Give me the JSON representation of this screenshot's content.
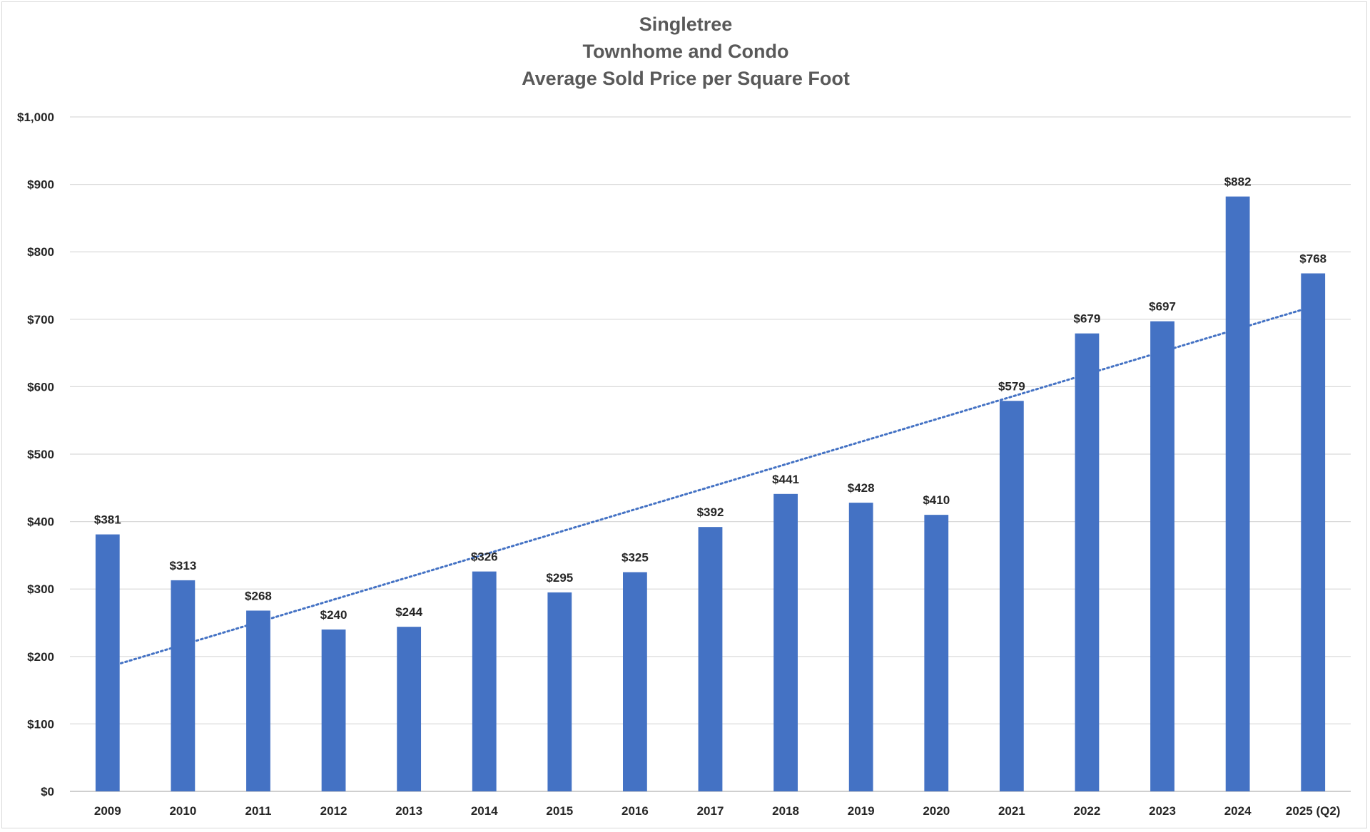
{
  "chart_data": {
    "type": "bar",
    "title": [
      "Singletree",
      "Townhome and Condo",
      "Average Sold Price per Square Foot"
    ],
    "xlabel": "",
    "ylabel": "",
    "categories": [
      "2009",
      "2010",
      "2011",
      "2012",
      "2013",
      "2014",
      "2015",
      "2016",
      "2017",
      "2018",
      "2019",
      "2020",
      "2021",
      "2022",
      "2023",
      "2024",
      "2025 (Q2)"
    ],
    "values": [
      381,
      313,
      268,
      240,
      244,
      326,
      295,
      325,
      392,
      441,
      428,
      410,
      579,
      679,
      697,
      882,
      768
    ],
    "data_labels": [
      "$381",
      "$313",
      "$268",
      "$240",
      "$244",
      "$326",
      "$295",
      "$325",
      "$392",
      "$441",
      "$428",
      "$410",
      "$579",
      "$679",
      "$697",
      "$882",
      "$768"
    ],
    "y_ticks": [
      0,
      100,
      200,
      300,
      400,
      500,
      600,
      700,
      800,
      900,
      1000
    ],
    "y_tick_labels": [
      "$0",
      "$100",
      "$200",
      "$300",
      "$400",
      "$500",
      "$600",
      "$700",
      "$800",
      "$900",
      "$1,000"
    ],
    "ylim": [
      0,
      1000
    ],
    "grid": true,
    "legend": "none",
    "bar_color": "#4472c4",
    "trendline": {
      "type": "linear",
      "style": "dotted",
      "color": "#4472c4",
      "start_value": 184,
      "end_value": 719
    }
  }
}
